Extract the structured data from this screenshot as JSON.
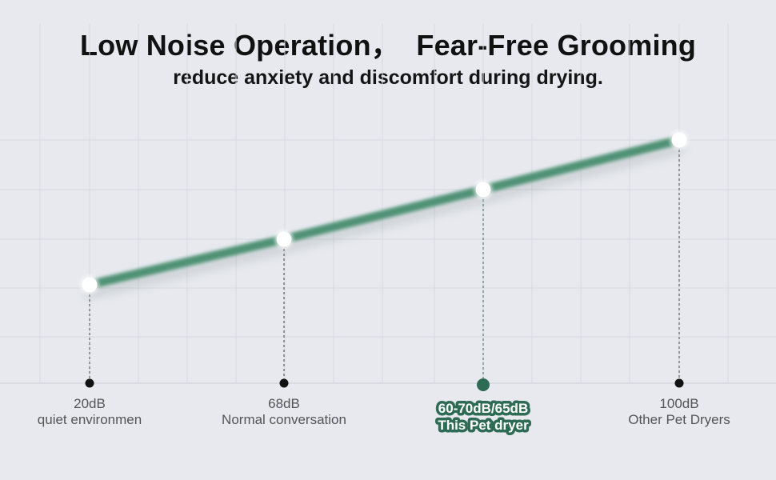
{
  "header": {
    "title": "Low Noise Operation，  Fear-Free Grooming",
    "subtitle": "reduce anxiety and discomfort during drying."
  },
  "colors": {
    "background": "#e7e9ef",
    "grid": "#d6d9df",
    "line": "#4f9275",
    "highlight": "#2e6b54",
    "point_fill": "#ffffff",
    "marker": "#111111"
  },
  "chart_data": {
    "type": "line",
    "title": "Low Noise Operation，  Fear-Free Grooming",
    "subtitle": "reduce anxiety and discomfort during drying.",
    "xlabel": "",
    "ylabel": "",
    "grid": true,
    "categories": [
      "20dB",
      "68dB",
      "60-70dB/65dB",
      "100dB"
    ],
    "descriptions": [
      "quiet environmen",
      "Normal conversation",
      "This Pet dryer",
      "Other Pet Dryers"
    ],
    "rank": [
      1,
      2,
      3,
      4
    ],
    "highlight_index": 2
  }
}
